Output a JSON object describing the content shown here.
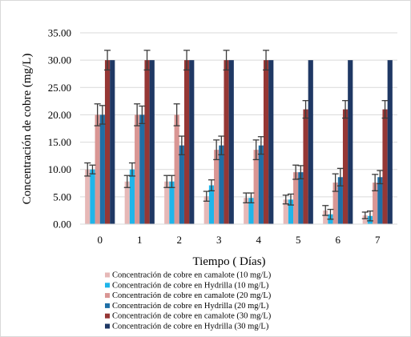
{
  "chart_data": {
    "type": "bar",
    "xlabel": "Tiempo ( Días)",
    "ylabel": "Concentración de cobre (mg/L)",
    "categories": [
      "0",
      "1",
      "2",
      "3",
      "4",
      "5",
      "6",
      "7"
    ],
    "ylim": [
      0,
      35
    ],
    "yticks": [
      "0.00",
      "5.00",
      "10.00",
      "15.00",
      "20.00",
      "25.00",
      "30.00",
      "35.00"
    ],
    "grid": true,
    "legend_position": "bottom",
    "series": [
      {
        "name": "Concentración de cobre en camalote (10 mg/L)",
        "color": "#e6b8b7",
        "values": [
          10.0,
          7.8,
          7.8,
          5.1,
          4.8,
          4.5,
          2.5,
          1.6
        ],
        "errors": [
          1.2,
          1.1,
          1.1,
          0.9,
          0.9,
          0.8,
          0.9,
          0.6
        ]
      },
      {
        "name": "Concentración de cobre en Hydrilla (10 mg/L)",
        "color": "#1fb5ea",
        "values": [
          10.0,
          10.0,
          7.8,
          7.1,
          4.8,
          4.5,
          1.8,
          1.5
        ],
        "errors": [
          0.8,
          1.2,
          1.1,
          1.0,
          0.9,
          1.0,
          0.9,
          0.9
        ]
      },
      {
        "name": "Concentración de cobre en camalote (20 mg/L)",
        "color": "#d99694",
        "values": [
          20.0,
          20.0,
          20.0,
          13.6,
          13.6,
          9.5,
          7.6,
          7.6
        ],
        "errors": [
          2.0,
          2.0,
          2.0,
          1.8,
          1.8,
          1.3,
          1.6,
          1.5
        ]
      },
      {
        "name": "Concentración de cobre en Hydrilla (20 mg/L)",
        "color": "#1f6fa6",
        "values": [
          20.0,
          20.0,
          14.4,
          14.4,
          14.4,
          9.5,
          8.6,
          8.6
        ],
        "errors": [
          1.7,
          1.6,
          1.7,
          1.7,
          1.6,
          1.2,
          1.6,
          1.2
        ]
      },
      {
        "name": "Concentración de cobre en camalote (30 mg/L)",
        "color": "#953735",
        "values": [
          30.0,
          30.0,
          30.0,
          30.0,
          30.0,
          21.0,
          21.0,
          21.0
        ],
        "errors": [
          1.8,
          1.8,
          1.8,
          1.8,
          1.8,
          1.6,
          1.6,
          1.6
        ]
      },
      {
        "name": "Concentración de cobre en Hydrilla (30 mg/L)",
        "color": "#1f3864",
        "values": [
          30.0,
          30.0,
          30.0,
          30.0,
          30.0,
          30.0,
          30.0,
          30.0
        ],
        "errors": [
          0,
          0,
          0,
          0,
          0,
          0,
          0,
          0
        ]
      }
    ]
  }
}
